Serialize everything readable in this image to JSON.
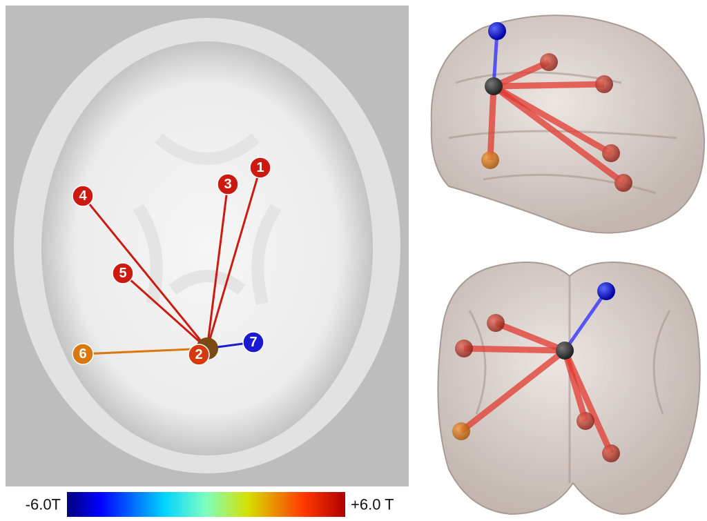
{
  "axial_view": {
    "nodes": [
      {
        "label": "1"
      },
      {
        "label": "2"
      },
      {
        "label": "3"
      },
      {
        "label": "4"
      },
      {
        "label": "5"
      },
      {
        "label": "6"
      },
      {
        "label": "7"
      }
    ]
  },
  "colorbar": {
    "min_label": "-6.0T",
    "max_label": "+6.0 T"
  }
}
